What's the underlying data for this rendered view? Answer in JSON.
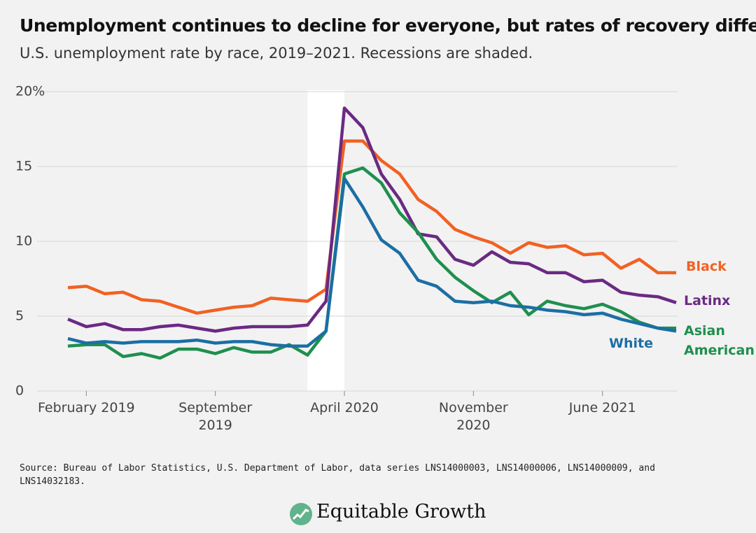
{
  "chart_data": {
    "type": "line",
    "title": "Unemployment continues to decline for everyone, but rates of recovery differ",
    "subtitle": "U.S. unemployment rate by race, 2019–2021. Recessions are shaded.",
    "source": "Source: Bureau of Labor Statistics, U.S. Department of Labor, data series LNS14000003, LNS14000006, LNS14000009, and LNS14032183.",
    "brand": "Equitable Growth",
    "categories": [
      null,
      "February 2019",
      null,
      null,
      null,
      null,
      null,
      null,
      "September 2019",
      null,
      null,
      null,
      null,
      null,
      null,
      "April 2020",
      null,
      null,
      null,
      null,
      null,
      null,
      "November 2020",
      null,
      null,
      null,
      null,
      null,
      null,
      "June 2021",
      null,
      null,
      null,
      null
    ],
    "shaded": [
      13,
      15
    ],
    "series": [
      {
        "name": "Black",
        "color": "#f26122",
        "values": [
          6.9,
          7.0,
          6.5,
          6.6,
          6.1,
          6.0,
          5.6,
          5.2,
          5.4,
          5.6,
          5.7,
          6.2,
          6.1,
          6.0,
          6.8,
          16.7,
          16.7,
          15.4,
          14.5,
          12.8,
          12.0,
          10.8,
          10.3,
          9.9,
          9.2,
          9.9,
          9.6,
          9.7,
          9.1,
          9.2,
          8.2,
          8.8,
          7.9,
          7.9
        ]
      },
      {
        "name": "Latinx",
        "color": "#6a2a83",
        "values": [
          4.8,
          4.3,
          4.5,
          4.1,
          4.1,
          4.3,
          4.4,
          4.2,
          4.0,
          4.2,
          4.3,
          4.3,
          4.3,
          4.4,
          6.0,
          18.9,
          17.6,
          14.5,
          12.8,
          10.5,
          10.3,
          8.8,
          8.4,
          9.3,
          8.6,
          8.5,
          7.9,
          7.9,
          7.3,
          7.4,
          6.6,
          6.4,
          6.3,
          5.9
        ]
      },
      {
        "name": "Asian American",
        "color": "#1f8f4e",
        "values": [
          3.0,
          3.1,
          3.1,
          2.3,
          2.5,
          2.2,
          2.8,
          2.8,
          2.5,
          2.9,
          2.6,
          2.6,
          3.1,
          2.4,
          4.0,
          14.5,
          14.9,
          13.9,
          11.9,
          10.6,
          8.8,
          7.6,
          6.7,
          5.9,
          6.6,
          5.1,
          6.0,
          5.7,
          5.5,
          5.8,
          5.3,
          4.6,
          4.2,
          4.2
        ]
      },
      {
        "name": "White",
        "color": "#1c6ea4",
        "values": [
          3.5,
          3.2,
          3.3,
          3.2,
          3.3,
          3.3,
          3.3,
          3.4,
          3.2,
          3.3,
          3.3,
          3.1,
          3.0,
          3.0,
          4.0,
          14.2,
          12.3,
          10.1,
          9.2,
          7.4,
          7.0,
          6.0,
          5.9,
          6.0,
          5.7,
          5.6,
          5.4,
          5.3,
          5.1,
          5.2,
          4.8,
          4.5,
          4.2,
          4.0
        ]
      }
    ],
    "ylim": [
      0,
      20
    ],
    "yticks": [
      0,
      5,
      10,
      15,
      {
        "value": 20,
        "label": "20%"
      }
    ],
    "grid": true
  }
}
